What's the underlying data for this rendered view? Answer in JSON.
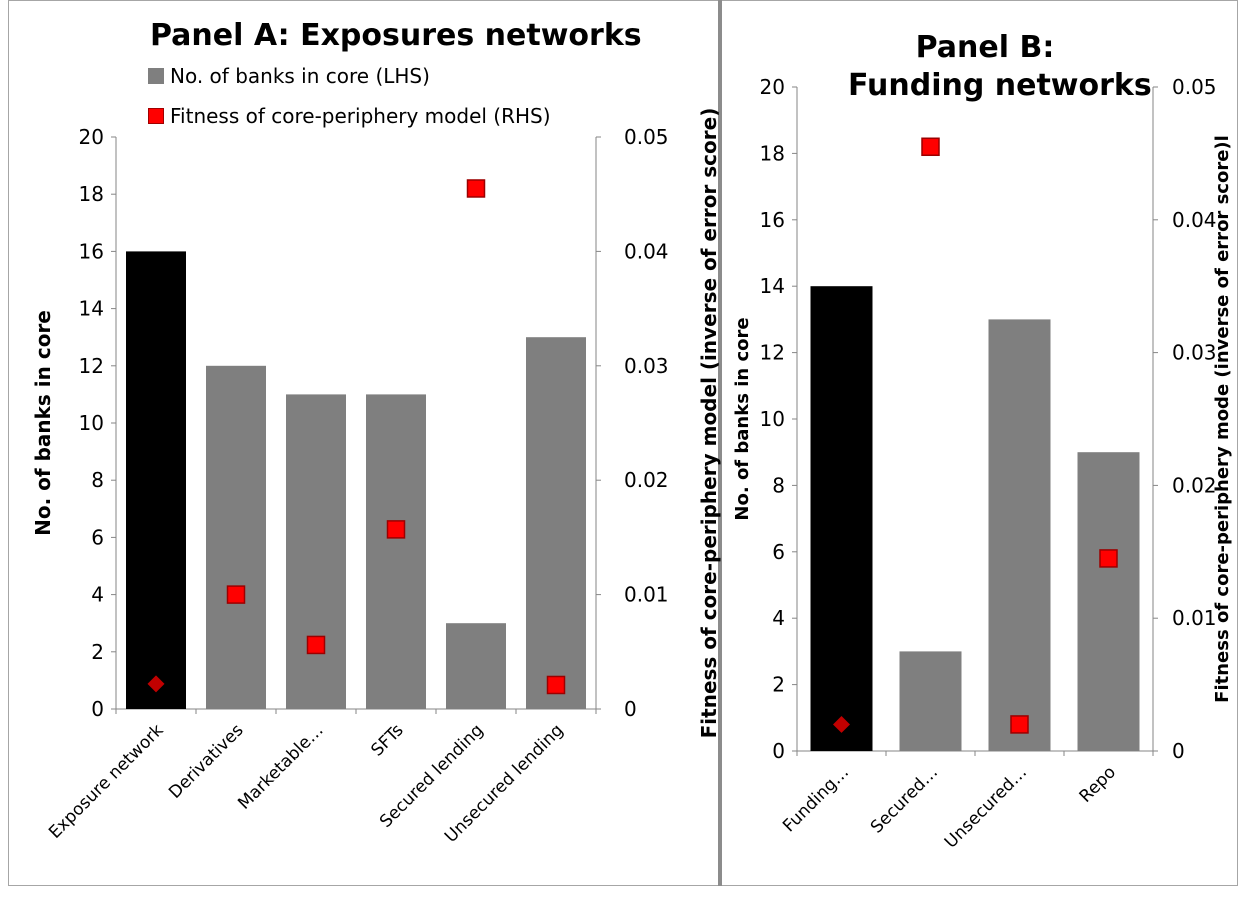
{
  "chart_data": [
    {
      "type": "bar",
      "title": "Panel A: Exposures networks",
      "categories": [
        "Exposure network",
        "Derivatives",
        "Marketable…",
        "SFTs",
        "Secured lending",
        "Unsecured lending"
      ],
      "ylabel": "No. of banks in core",
      "y2label": "Fitness of core-periphery model (inverse of error score)",
      "ylim": [
        0,
        20
      ],
      "y2lim": [
        0,
        0.05
      ],
      "yticks": [
        "0",
        "2",
        "4",
        "6",
        "8",
        "10",
        "12",
        "14",
        "16",
        "18",
        "20"
      ],
      "y2ticks": [
        "0",
        "0.01",
        "0.02",
        "0.03",
        "0.04",
        "0.05"
      ],
      "series": [
        {
          "name": "No. of banks in core (LHS)",
          "axis": "left",
          "values": [
            16,
            12,
            11,
            11,
            3,
            13
          ]
        },
        {
          "name": "Fitness of core-periphery model (RHS)",
          "axis": "right",
          "values": [
            0.0022,
            0.01,
            0.0056,
            0.0157,
            0.0455,
            0.0021
          ]
        }
      ],
      "legend": [
        "No. of banks in core (LHS)",
        "Fitness of core-periphery model (RHS)"
      ],
      "legend_position": "top",
      "grid": false,
      "colors": {
        "first_bar": "#000000",
        "bar": "#7f7f7f",
        "marker": "#ff0000",
        "first_marker": "#c00000"
      }
    },
    {
      "type": "bar",
      "title": "Panel B: Funding networks",
      "title_lines": [
        "Panel B:",
        "Funding networks"
      ],
      "categories": [
        "Funding…",
        "Secured…",
        "Unsecured…",
        "Repo"
      ],
      "ylabel": "No. of banks in core",
      "y2label": "Fitness of core-periphery mode (inverse of error score)l",
      "ylim": [
        0,
        20
      ],
      "y2lim": [
        0,
        0.05
      ],
      "yticks": [
        "0",
        "2",
        "4",
        "6",
        "8",
        "10",
        "12",
        "14",
        "16",
        "18",
        "20"
      ],
      "y2ticks": [
        "0",
        "0.01",
        "0.02",
        "0.03",
        "0.04",
        "0.05"
      ],
      "series": [
        {
          "axis": "left",
          "values": [
            14,
            3,
            13,
            9
          ]
        },
        {
          "axis": "right",
          "values": [
            0.002,
            0.0455,
            0.002,
            0.0145
          ]
        }
      ],
      "grid": false,
      "colors": {
        "first_bar": "#000000",
        "bar": "#7f7f7f",
        "marker": "#ff0000",
        "first_marker": "#c00000"
      }
    }
  ]
}
